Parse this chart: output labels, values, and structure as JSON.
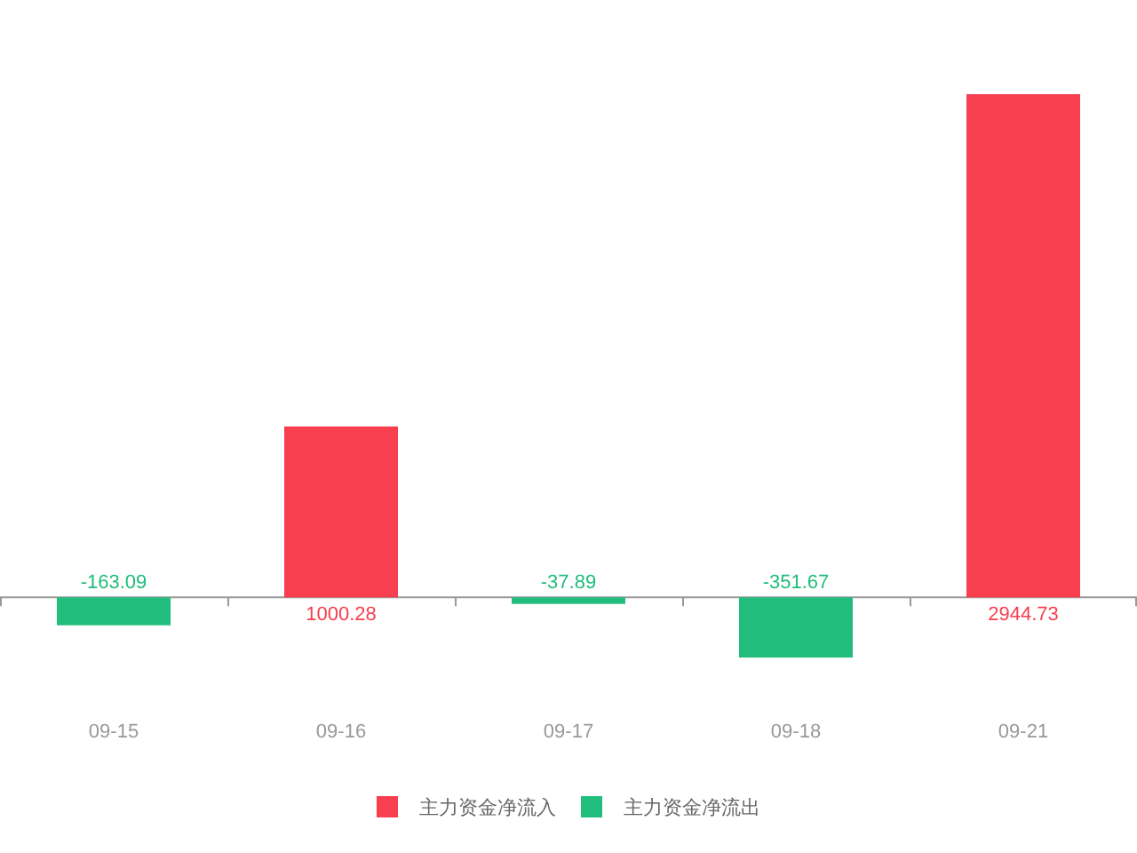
{
  "chart_data": {
    "type": "bar",
    "categories": [
      "09-15",
      "09-16",
      "09-17",
      "09-18",
      "09-21"
    ],
    "stacked": true,
    "series": [
      {
        "name": "主力资金净流入",
        "color": "#f73f4f",
        "values": [
          null,
          1000.28,
          null,
          null,
          2944.73
        ]
      },
      {
        "name": "主力资金净流出",
        "color": "#21bd7d",
        "values": [
          -163.09,
          null,
          -37.89,
          -351.67,
          null
        ]
      }
    ],
    "data_labels": true,
    "legend": "bottom"
  }
}
